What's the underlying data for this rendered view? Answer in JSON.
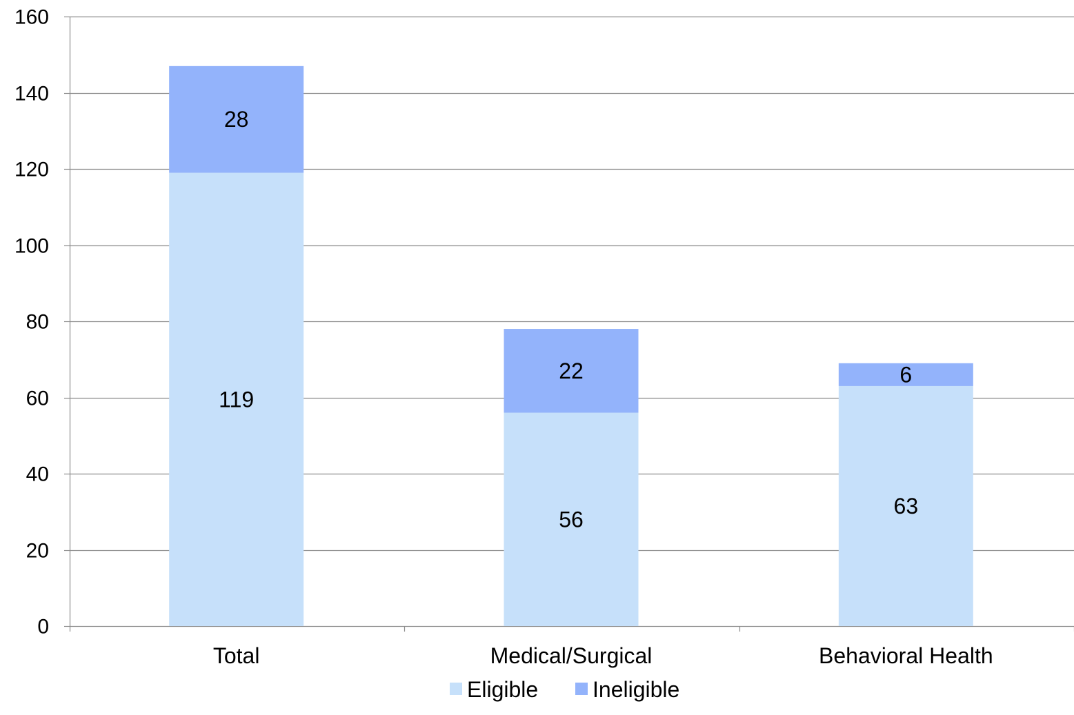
{
  "chart_data": {
    "type": "bar",
    "stacked": true,
    "categories": [
      "Total",
      "Medical/Surgical",
      "Behavioral Health"
    ],
    "series": [
      {
        "name": "Eligible",
        "values": [
          119,
          56,
          63
        ],
        "color": "#c6e0fa"
      },
      {
        "name": "Ineligible",
        "values": [
          28,
          22,
          6
        ],
        "color": "#93b3fb"
      }
    ],
    "ylim": [
      0,
      160
    ],
    "y_ticks": [
      0,
      20,
      40,
      60,
      80,
      100,
      120,
      140,
      160
    ],
    "grid": true,
    "legend_position": "bottom",
    "title": "",
    "xlabel": "",
    "ylabel": ""
  }
}
